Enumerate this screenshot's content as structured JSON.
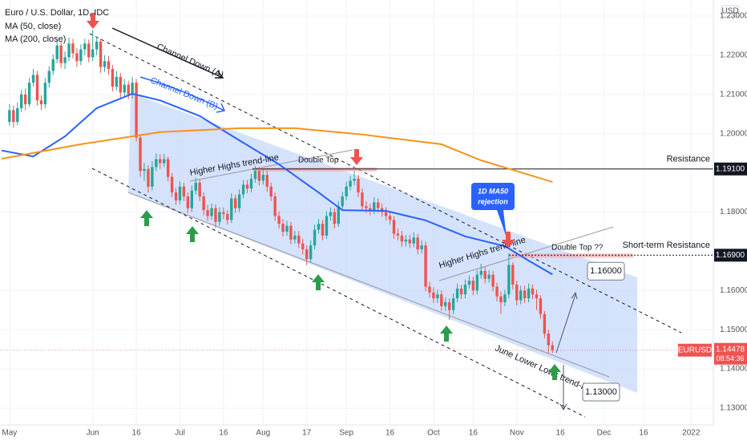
{
  "chart_data": {
    "type": "candlestick",
    "title": "Euro / U.S. Dollar, 1D, IDC",
    "currency": "USD",
    "up_color": "#26a69a",
    "down_color": "#ef5350",
    "xlim": [
      -2.4,
      177.6
    ],
    "ylim": [
      1.1257,
      1.2341
    ],
    "xticks": [
      {
        "value": 0,
        "label": "May"
      },
      {
        "value": 21,
        "label": "Jun"
      },
      {
        "value": 32,
        "label": "16"
      },
      {
        "value": 43,
        "label": "Jul"
      },
      {
        "value": 54,
        "label": "16"
      },
      {
        "value": 64,
        "label": "Aug"
      },
      {
        "value": 75,
        "label": "17"
      },
      {
        "value": 85,
        "label": "Sep"
      },
      {
        "value": 96,
        "label": "16"
      },
      {
        "value": 107,
        "label": "Oct"
      },
      {
        "value": 117,
        "label": "16"
      },
      {
        "value": 128,
        "label": "Nov"
      },
      {
        "value": 139,
        "label": "16"
      },
      {
        "value": 150,
        "label": "Dec"
      },
      {
        "value": 160,
        "label": "16"
      },
      {
        "value": 172,
        "label": "2022"
      }
    ],
    "yticks": [
      {
        "value": 1.23,
        "label": "1.23000"
      },
      {
        "value": 1.22,
        "label": "1.22000"
      },
      {
        "value": 1.21,
        "label": "1.21000"
      },
      {
        "value": 1.2,
        "label": "1.20000"
      },
      {
        "value": 1.18,
        "label": "1.18000"
      },
      {
        "value": 1.16,
        "label": "1.16000"
      },
      {
        "value": 1.15,
        "label": "1.15000"
      },
      {
        "value": 1.14,
        "label": "1.14000"
      },
      {
        "value": 1.13,
        "label": "1.13000"
      }
    ],
    "candles": [
      [
        1.203,
        1.2075,
        1.202,
        1.206
      ],
      [
        1.206,
        1.2072,
        1.2015,
        1.203
      ],
      [
        1.203,
        1.208,
        1.2022,
        1.2065
      ],
      [
        1.2065,
        1.2112,
        1.2055,
        1.21
      ],
      [
        1.21,
        1.2115,
        1.206,
        1.2075
      ],
      [
        1.2075,
        1.2142,
        1.2068,
        1.213
      ],
      [
        1.213,
        1.2165,
        1.212,
        1.215
      ],
      [
        1.215,
        1.216,
        1.2072,
        1.2085
      ],
      [
        1.2085,
        1.2098,
        1.206,
        1.2075
      ],
      [
        1.2075,
        1.2142,
        1.2065,
        1.213
      ],
      [
        1.213,
        1.2172,
        1.2118,
        1.216
      ],
      [
        1.216,
        1.2202,
        1.215,
        1.219
      ],
      [
        1.219,
        1.224,
        1.218,
        1.2225
      ],
      [
        1.2225,
        1.2235,
        1.2168,
        1.218
      ],
      [
        1.218,
        1.221,
        1.2165,
        1.2195
      ],
      [
        1.2195,
        1.2245,
        1.2185,
        1.223
      ],
      [
        1.223,
        1.2242,
        1.2192,
        1.2205
      ],
      [
        1.2205,
        1.2218,
        1.217,
        1.2185
      ],
      [
        1.2185,
        1.2228,
        1.2175,
        1.2215
      ],
      [
        1.2215,
        1.2242,
        1.22,
        1.223
      ],
      [
        1.223,
        1.224,
        1.2182,
        1.2195
      ],
      [
        1.2195,
        1.2265,
        1.2185,
        1.2215
      ],
      [
        1.2215,
        1.2248,
        1.22,
        1.2235
      ],
      [
        1.2235,
        1.2242,
        1.2155,
        1.217
      ],
      [
        1.217,
        1.22,
        1.2158,
        1.2185
      ],
      [
        1.2185,
        1.2198,
        1.215,
        1.2165
      ],
      [
        1.2165,
        1.2175,
        1.2108,
        1.212
      ],
      [
        1.212,
        1.216,
        1.211,
        1.2145
      ],
      [
        1.2145,
        1.2155,
        1.2092,
        1.2105
      ],
      [
        1.2105,
        1.214,
        1.2095,
        1.2125
      ],
      [
        1.2125,
        1.2135,
        1.2088,
        1.21
      ],
      [
        1.21,
        1.2145,
        1.209,
        1.213
      ],
      [
        1.213,
        1.214,
        1.198,
        1.199
      ],
      [
        1.199,
        1.1998,
        1.189,
        1.1905
      ],
      [
        1.1905,
        1.1925,
        1.188,
        1.191
      ],
      [
        1.191,
        1.192,
        1.185,
        1.1865
      ],
      [
        1.1865,
        1.193,
        1.1855,
        1.1915
      ],
      [
        1.1915,
        1.195,
        1.1905,
        1.1935
      ],
      [
        1.1935,
        1.1948,
        1.191,
        1.1925
      ],
      [
        1.1925,
        1.1948,
        1.1915,
        1.1935
      ],
      [
        1.1935,
        1.1942,
        1.1878,
        1.189
      ],
      [
        1.189,
        1.19,
        1.1838,
        1.185
      ],
      [
        1.185,
        1.1862,
        1.1818,
        1.183
      ],
      [
        1.183,
        1.1878,
        1.182,
        1.1865
      ],
      [
        1.1865,
        1.1875,
        1.1828,
        1.184
      ],
      [
        1.184,
        1.185,
        1.1798,
        1.181
      ],
      [
        1.181,
        1.1868,
        1.18,
        1.1855
      ],
      [
        1.1855,
        1.1888,
        1.1845,
        1.1875
      ],
      [
        1.1875,
        1.1885,
        1.1828,
        1.184
      ],
      [
        1.184,
        1.185,
        1.1792,
        1.1805
      ],
      [
        1.1805,
        1.1818,
        1.1778,
        1.179
      ],
      [
        1.179,
        1.1822,
        1.178,
        1.181
      ],
      [
        1.181,
        1.182,
        1.176,
        1.1775
      ],
      [
        1.1775,
        1.1812,
        1.1765,
        1.18
      ],
      [
        1.18,
        1.1812,
        1.1782,
        1.1795
      ],
      [
        1.1795,
        1.1805,
        1.1768,
        1.178
      ],
      [
        1.178,
        1.1848,
        1.1772,
        1.1835
      ],
      [
        1.1835,
        1.1845,
        1.1798,
        1.181
      ],
      [
        1.181,
        1.1858,
        1.18,
        1.1845
      ],
      [
        1.1845,
        1.1882,
        1.1835,
        1.187
      ],
      [
        1.187,
        1.1882,
        1.1848,
        1.186
      ],
      [
        1.186,
        1.1898,
        1.185,
        1.1885
      ],
      [
        1.1885,
        1.1918,
        1.1875,
        1.1905
      ],
      [
        1.1905,
        1.1915,
        1.1868,
        1.188
      ],
      [
        1.188,
        1.1908,
        1.187,
        1.1895
      ],
      [
        1.1895,
        1.1905,
        1.1852,
        1.1865
      ],
      [
        1.1865,
        1.1875,
        1.1828,
        1.184
      ],
      [
        1.184,
        1.185,
        1.1778,
        1.179
      ],
      [
        1.179,
        1.1802,
        1.1758,
        1.177
      ],
      [
        1.177,
        1.1782,
        1.1738,
        1.175
      ],
      [
        1.175,
        1.1778,
        1.174,
        1.1765
      ],
      [
        1.1765,
        1.1775,
        1.1718,
        1.173
      ],
      [
        1.173,
        1.1752,
        1.172,
        1.174
      ],
      [
        1.174,
        1.1752,
        1.1708,
        1.172
      ],
      [
        1.172,
        1.1732,
        1.1692,
        1.1705
      ],
      [
        1.1705,
        1.1715,
        1.1665,
        1.168
      ],
      [
        1.168,
        1.1728,
        1.1672,
        1.1715
      ],
      [
        1.1715,
        1.1768,
        1.1705,
        1.1755
      ],
      [
        1.1755,
        1.1782,
        1.1745,
        1.177
      ],
      [
        1.177,
        1.178,
        1.1728,
        1.174
      ],
      [
        1.174,
        1.1802,
        1.1732,
        1.179
      ],
      [
        1.179,
        1.1812,
        1.1778,
        1.18
      ],
      [
        1.18,
        1.181,
        1.1758,
        1.177
      ],
      [
        1.177,
        1.1828,
        1.1762,
        1.1815
      ],
      [
        1.1815,
        1.1852,
        1.1805,
        1.184
      ],
      [
        1.184,
        1.1878,
        1.183,
        1.1865
      ],
      [
        1.1865,
        1.1892,
        1.1855,
        1.188
      ],
      [
        1.188,
        1.1905,
        1.1868,
        1.1885
      ],
      [
        1.1885,
        1.1895,
        1.1838,
        1.185
      ],
      [
        1.185,
        1.186,
        1.1802,
        1.1815
      ],
      [
        1.1815,
        1.1828,
        1.1798,
        1.181
      ],
      [
        1.181,
        1.1822,
        1.1792,
        1.1805
      ],
      [
        1.1805,
        1.1838,
        1.1795,
        1.1825
      ],
      [
        1.1825,
        1.1835,
        1.1798,
        1.181
      ],
      [
        1.181,
        1.1822,
        1.1788,
        1.18
      ],
      [
        1.18,
        1.1812,
        1.1778,
        1.179
      ],
      [
        1.179,
        1.1802,
        1.1768,
        1.178
      ],
      [
        1.178,
        1.179,
        1.1732,
        1.1745
      ],
      [
        1.1745,
        1.1758,
        1.1728,
        1.174
      ],
      [
        1.174,
        1.1752,
        1.1712,
        1.1725
      ],
      [
        1.1725,
        1.1742,
        1.1712,
        1.173
      ],
      [
        1.173,
        1.1742,
        1.1708,
        1.172
      ],
      [
        1.172,
        1.1748,
        1.171,
        1.1735
      ],
      [
        1.1735,
        1.1745,
        1.1692,
        1.1705
      ],
      [
        1.1705,
        1.1728,
        1.1695,
        1.1715
      ],
      [
        1.1715,
        1.1725,
        1.1598,
        1.161
      ],
      [
        1.161,
        1.1622,
        1.1582,
        1.1595
      ],
      [
        1.1595,
        1.1608,
        1.1568,
        1.158
      ],
      [
        1.158,
        1.1602,
        1.1568,
        1.159
      ],
      [
        1.159,
        1.16,
        1.1548,
        1.156
      ],
      [
        1.156,
        1.1582,
        1.1548,
        1.157
      ],
      [
        1.157,
        1.158,
        1.1525,
        1.155
      ],
      [
        1.155,
        1.1592,
        1.154,
        1.158
      ],
      [
        1.158,
        1.1618,
        1.157,
        1.1605
      ],
      [
        1.1605,
        1.1615,
        1.1578,
        1.159
      ],
      [
        1.159,
        1.1628,
        1.158,
        1.1615
      ],
      [
        1.1615,
        1.1638,
        1.1605,
        1.1625
      ],
      [
        1.1625,
        1.1635,
        1.1588,
        1.16
      ],
      [
        1.16,
        1.1652,
        1.159,
        1.164
      ],
      [
        1.164,
        1.1668,
        1.163,
        1.165
      ],
      [
        1.165,
        1.166,
        1.1618,
        1.163
      ],
      [
        1.163,
        1.1652,
        1.162,
        1.164
      ],
      [
        1.164,
        1.165,
        1.1598,
        1.161
      ],
      [
        1.161,
        1.162,
        1.1572,
        1.1585
      ],
      [
        1.1585,
        1.1598,
        1.154,
        1.157
      ],
      [
        1.157,
        1.1602,
        1.156,
        1.159
      ],
      [
        1.159,
        1.1695,
        1.158,
        1.1665
      ],
      [
        1.1665,
        1.1672,
        1.1602,
        1.1615
      ],
      [
        1.1615,
        1.1625,
        1.1562,
        1.1575
      ],
      [
        1.1575,
        1.1612,
        1.1565,
        1.16
      ],
      [
        1.16,
        1.1612,
        1.1568,
        1.158
      ],
      [
        1.158,
        1.1618,
        1.157,
        1.1605
      ],
      [
        1.1605,
        1.1615,
        1.1578,
        1.159
      ],
      [
        1.159,
        1.1602,
        1.155,
        1.158
      ],
      [
        1.158,
        1.1588,
        1.1528,
        1.154
      ],
      [
        1.154,
        1.1548,
        1.1478,
        1.149
      ],
      [
        1.149,
        1.15,
        1.144,
        1.146
      ],
      [
        1.146,
        1.147,
        1.144,
        1.14478
      ]
    ],
    "series": [
      {
        "name": "MA (50, close)",
        "color": "#2962ff",
        "x": [
          -2,
          6,
          14,
          22,
          31,
          38,
          48,
          58,
          68,
          78,
          84,
          95,
          105,
          115,
          125,
          131,
          137
        ],
        "values": [
          1.1957,
          1.1942,
          1.1993,
          1.2065,
          1.2102,
          1.2085,
          1.2045,
          1.1983,
          1.1922,
          1.185,
          1.1805,
          1.1803,
          1.1779,
          1.1738,
          1.1713,
          1.1676,
          1.1641
        ]
      },
      {
        "name": "MA (200, close)",
        "color": "#f7931a",
        "x": [
          -2,
          18,
          38,
          58,
          72,
          89,
          109,
          119,
          137
        ],
        "values": [
          1.1936,
          1.1973,
          1.2004,
          1.2014,
          1.2014,
          1.1998,
          1.1973,
          1.1932,
          1.1877
        ]
      }
    ],
    "levels": [
      {
        "name": "Resistance",
        "value": 1.191,
        "label": "1.19100"
      },
      {
        "name": "Short-term Resistance",
        "value": 1.169,
        "label": "1.16900"
      }
    ],
    "targets": [
      {
        "value": 1.16,
        "label": "1.16000"
      },
      {
        "value": 1.13,
        "label": "1.13000"
      }
    ],
    "price_label": {
      "symbol": "EURUSD",
      "label": "1.14478",
      "countdown": "08:54:36"
    },
    "annotations": {
      "channel_a": "Channel Down (A)",
      "channel_b": "Channel Down (B)",
      "higher_highs_1": "Higher Highs trend-line",
      "higher_highs_2": "Higher Highs trend-line",
      "double_top": "Double Top",
      "double_top_2": "Double Top ??",
      "ma50_rejection_1": "1D MA50",
      "ma50_rejection_2": "rejection",
      "june_lows": "June Lower Lows trend-line"
    }
  }
}
